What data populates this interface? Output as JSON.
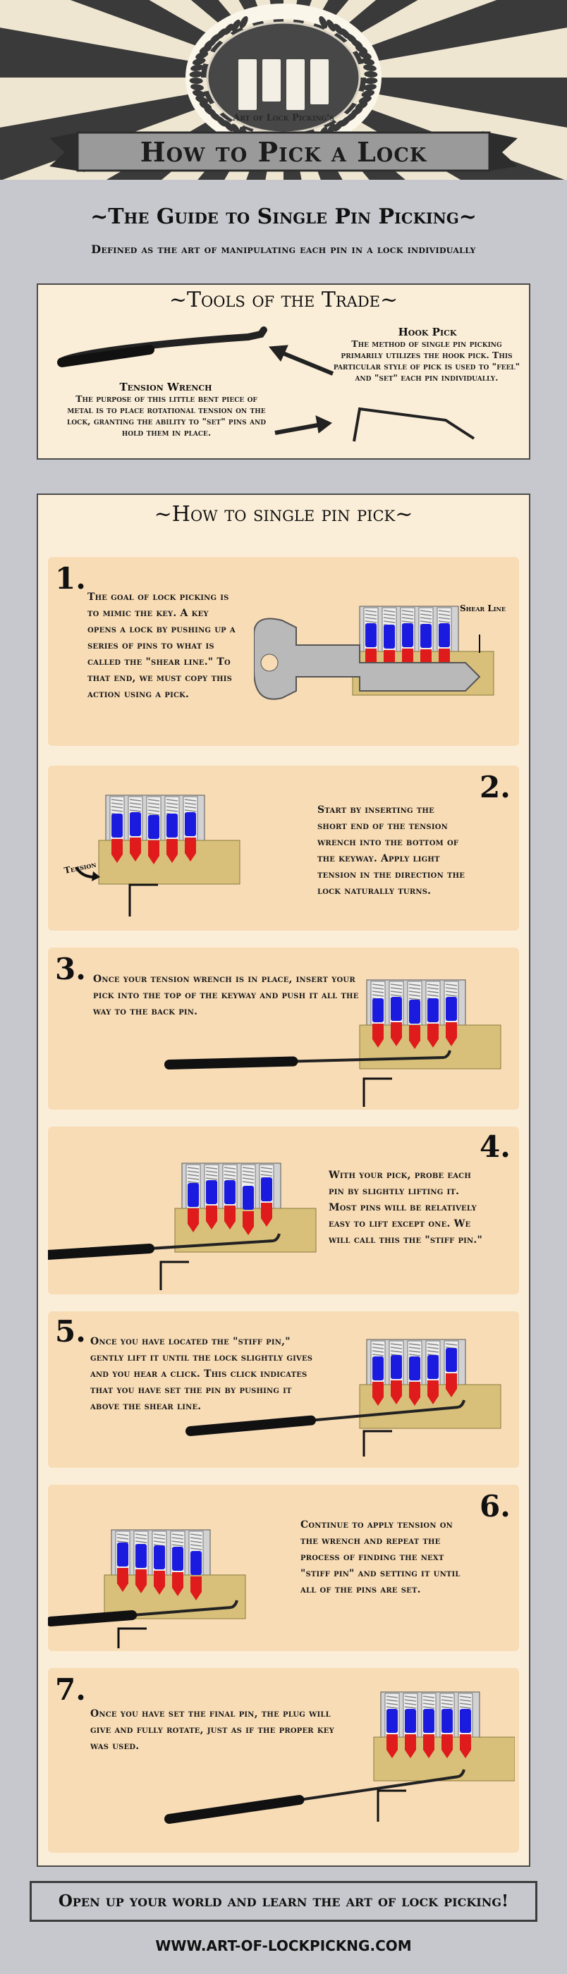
{
  "header": {
    "brand": "Art of Lock Picking's",
    "title": "How to Pick a Lock"
  },
  "intro": {
    "title": "~The Guide to Single Pin Picking~",
    "subtitle": "Defined as the art of manipulating each pin in a lock individually"
  },
  "tools": {
    "title": "~Tools of the Trade~",
    "hook_title": "Hook Pick",
    "hook_desc": "The method of single pin picking primarily utilizes the hook pick. This particular style of pick is used to \"feel\" and \"set\" each pin individually.",
    "wrench_title": "Tension Wrench",
    "wrench_desc": "The purpose of this little bent piece of metal is to place rotational tension on the lock, granting the ability to \"set\" pins and hold them in place."
  },
  "steps_section": {
    "title": "~How to single pin pick~",
    "steps": [
      {
        "num": "1.",
        "text": "The goal of lock picking is to mimic the key. A key opens a lock by pushing up a series of pins to what is called the \"shear line.\" To that end, we must copy this action using a pick.",
        "callout": "Shear Line"
      },
      {
        "num": "2.",
        "text": "Start by inserting the short end of the tension wrench into the bottom of the keyway. Apply light tension in the direction the lock naturally turns.",
        "callout": "Tension Wrench"
      },
      {
        "num": "3.",
        "text": "Once your tension wrench is in place, insert your pick into the top of the keyway and push it all the way to the back pin."
      },
      {
        "num": "4.",
        "text": "With your pick, probe each pin by slightly lifting it. Most pins will be relatively easy to lift except one. We will call this the \"stiff pin.\""
      },
      {
        "num": "5.",
        "text": "Once you have located the \"stiff pin,\" gently lift it until the lock slightly gives and you hear a click. This click indicates that you have set the pin by pushing it above the shear line."
      },
      {
        "num": "6.",
        "text": "Continue to apply tension on the wrench and repeat the process of finding the next \"stiff pin\" and setting it until all of the pins are set."
      },
      {
        "num": "7.",
        "text": "Once you have set the final pin, the plug will give and fully rotate, just as if the proper key was used."
      }
    ]
  },
  "footer": {
    "tagline": "Open up your world and learn the art of lock picking!",
    "url": "WWW.ART-OF-LOCKPICKNG.COM"
  },
  "colors": {
    "background": "#c7c8cd",
    "panel": "#fbeed8",
    "card": "#f8dcb6",
    "pin_blue": "#1b1be0",
    "pin_red": "#e01b1b",
    "brass": "#d8c07a"
  }
}
